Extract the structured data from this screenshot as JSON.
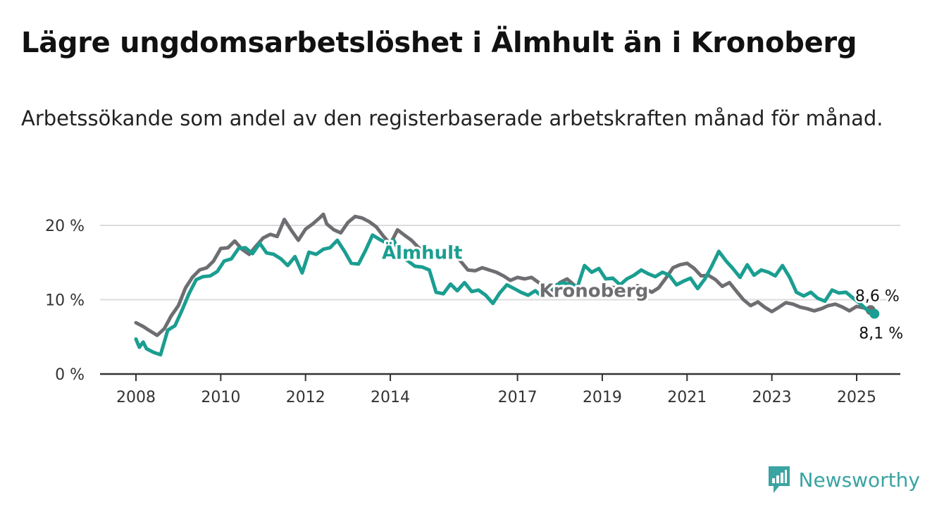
{
  "header": {
    "title": "Lägre ungdomsarbetslöshet i Älmhult än i Kronoberg",
    "subtitle": "Arbetssökande som andel av den registerbaserade arbetskraften månad för månad."
  },
  "brand": {
    "name": "Newsworthy",
    "icon": "newsworthy-logo-icon",
    "color": "#3aa4a2"
  },
  "chart_data": {
    "type": "line",
    "y_ticks": [
      "0 %",
      "10 %",
      "20 %"
    ],
    "y_tick_values": [
      0,
      10,
      20
    ],
    "x_ticks": [
      "2008",
      "2010",
      "2012",
      "2014",
      "2017",
      "2019",
      "2021",
      "2023",
      "2025"
    ],
    "x_tick_values": [
      2008,
      2010,
      2012,
      2014,
      2017,
      2019,
      2021,
      2023,
      2025
    ],
    "xlim": [
      2006.8,
      2026.0
    ],
    "ylim": [
      0,
      22
    ],
    "grid": true,
    "series": [
      {
        "name": "Kronoberg",
        "color": "#6e6e72",
        "label_at": [
          2018.8,
          10.4
        ],
        "end_label": "8,6 %",
        "points": [
          [
            2008.0,
            6.9
          ],
          [
            2008.17,
            6.4
          ],
          [
            2008.33,
            5.8
          ],
          [
            2008.5,
            5.2
          ],
          [
            2008.67,
            6.1
          ],
          [
            2008.83,
            7.8
          ],
          [
            2009.0,
            9.2
          ],
          [
            2009.17,
            11.6
          ],
          [
            2009.33,
            13.0
          ],
          [
            2009.5,
            14.0
          ],
          [
            2009.67,
            14.3
          ],
          [
            2009.83,
            15.2
          ],
          [
            2010.0,
            16.9
          ],
          [
            2010.17,
            17.0
          ],
          [
            2010.33,
            17.9
          ],
          [
            2010.5,
            16.8
          ],
          [
            2010.67,
            16.1
          ],
          [
            2010.83,
            17.2
          ],
          [
            2011.0,
            18.3
          ],
          [
            2011.17,
            18.8
          ],
          [
            2011.33,
            18.5
          ],
          [
            2011.5,
            20.8
          ],
          [
            2011.67,
            19.3
          ],
          [
            2011.83,
            18.0
          ],
          [
            2012.0,
            19.5
          ],
          [
            2012.17,
            20.2
          ],
          [
            2012.33,
            21.0
          ],
          [
            2012.42,
            21.5
          ],
          [
            2012.5,
            20.2
          ],
          [
            2012.67,
            19.4
          ],
          [
            2012.83,
            19.0
          ],
          [
            2013.0,
            20.4
          ],
          [
            2013.17,
            21.2
          ],
          [
            2013.33,
            21.0
          ],
          [
            2013.5,
            20.5
          ],
          [
            2013.67,
            19.8
          ],
          [
            2013.83,
            18.6
          ],
          [
            2014.0,
            17.5
          ],
          [
            2014.17,
            19.4
          ],
          [
            2014.33,
            18.7
          ],
          [
            2014.5,
            18.0
          ],
          [
            2014.67,
            17.0
          ],
          [
            2014.83,
            16.4
          ],
          [
            2015.0,
            16.1
          ],
          [
            2015.17,
            15.6
          ],
          [
            2015.33,
            15.9
          ],
          [
            2015.5,
            16.2
          ],
          [
            2015.67,
            15.1
          ],
          [
            2015.83,
            14.0
          ],
          [
            2016.0,
            13.9
          ],
          [
            2016.17,
            14.3
          ],
          [
            2016.33,
            14.0
          ],
          [
            2016.5,
            13.7
          ],
          [
            2016.67,
            13.2
          ],
          [
            2016.83,
            12.6
          ],
          [
            2017.0,
            13.0
          ],
          [
            2017.17,
            12.8
          ],
          [
            2017.33,
            13.0
          ],
          [
            2017.5,
            12.3
          ],
          [
            2017.67,
            11.8
          ],
          [
            2017.83,
            11.3
          ],
          [
            2018.0,
            12.3
          ],
          [
            2018.17,
            12.8
          ],
          [
            2018.33,
            12.0
          ],
          [
            2018.5,
            11.2
          ],
          [
            2018.67,
            10.6
          ],
          [
            2018.83,
            10.3
          ],
          [
            2019.0,
            10.8
          ],
          [
            2019.17,
            11.7
          ],
          [
            2019.33,
            11.6
          ],
          [
            2019.5,
            11.3
          ],
          [
            2019.67,
            11.1
          ],
          [
            2019.83,
            11.9
          ],
          [
            2020.0,
            11.5
          ],
          [
            2020.17,
            11.0
          ],
          [
            2020.33,
            11.6
          ],
          [
            2020.5,
            12.9
          ],
          [
            2020.67,
            14.3
          ],
          [
            2020.83,
            14.7
          ],
          [
            2021.0,
            14.9
          ],
          [
            2021.17,
            14.2
          ],
          [
            2021.33,
            13.2
          ],
          [
            2021.5,
            13.3
          ],
          [
            2021.67,
            12.7
          ],
          [
            2021.83,
            11.8
          ],
          [
            2022.0,
            12.3
          ],
          [
            2022.17,
            11.1
          ],
          [
            2022.33,
            10.0
          ],
          [
            2022.5,
            9.2
          ],
          [
            2022.67,
            9.7
          ],
          [
            2022.83,
            9.0
          ],
          [
            2023.0,
            8.4
          ],
          [
            2023.17,
            9.0
          ],
          [
            2023.33,
            9.6
          ],
          [
            2023.5,
            9.4
          ],
          [
            2023.67,
            9.0
          ],
          [
            2023.83,
            8.8
          ],
          [
            2024.0,
            8.5
          ],
          [
            2024.17,
            8.8
          ],
          [
            2024.33,
            9.2
          ],
          [
            2024.5,
            9.4
          ],
          [
            2024.67,
            9.0
          ],
          [
            2024.83,
            8.5
          ],
          [
            2025.0,
            9.1
          ],
          [
            2025.17,
            8.9
          ],
          [
            2025.33,
            8.6
          ]
        ]
      },
      {
        "name": "Älmhult",
        "color": "#1a9e91",
        "label_at": [
          2014.75,
          15.5
        ],
        "end_label": "8,1 %",
        "points": [
          [
            2008.0,
            4.7
          ],
          [
            2008.08,
            3.6
          ],
          [
            2008.17,
            4.3
          ],
          [
            2008.25,
            3.4
          ],
          [
            2008.42,
            2.9
          ],
          [
            2008.58,
            2.6
          ],
          [
            2008.75,
            5.9
          ],
          [
            2008.92,
            6.5
          ],
          [
            2009.08,
            8.5
          ],
          [
            2009.25,
            10.8
          ],
          [
            2009.42,
            12.7
          ],
          [
            2009.58,
            13.1
          ],
          [
            2009.75,
            13.2
          ],
          [
            2009.92,
            13.8
          ],
          [
            2010.08,
            15.2
          ],
          [
            2010.25,
            15.5
          ],
          [
            2010.42,
            16.9
          ],
          [
            2010.58,
            17.0
          ],
          [
            2010.75,
            16.2
          ],
          [
            2010.92,
            17.6
          ],
          [
            2011.08,
            16.3
          ],
          [
            2011.25,
            16.1
          ],
          [
            2011.42,
            15.5
          ],
          [
            2011.58,
            14.6
          ],
          [
            2011.75,
            15.8
          ],
          [
            2011.92,
            13.6
          ],
          [
            2012.08,
            16.4
          ],
          [
            2012.25,
            16.1
          ],
          [
            2012.42,
            16.8
          ],
          [
            2012.58,
            17.0
          ],
          [
            2012.75,
            18.0
          ],
          [
            2012.92,
            16.5
          ],
          [
            2013.08,
            14.9
          ],
          [
            2013.25,
            14.8
          ],
          [
            2013.42,
            16.7
          ],
          [
            2013.58,
            18.7
          ],
          [
            2013.75,
            18.1
          ],
          [
            2013.92,
            17.6
          ],
          [
            2014.08,
            18.0
          ],
          [
            2014.25,
            15.9
          ],
          [
            2014.42,
            15.2
          ],
          [
            2014.58,
            14.5
          ],
          [
            2014.75,
            14.4
          ],
          [
            2014.92,
            14.0
          ],
          [
            2015.08,
            11.0
          ],
          [
            2015.25,
            10.8
          ],
          [
            2015.42,
            12.1
          ],
          [
            2015.58,
            11.2
          ],
          [
            2015.75,
            12.3
          ],
          [
            2015.92,
            11.1
          ],
          [
            2016.08,
            11.3
          ],
          [
            2016.25,
            10.6
          ],
          [
            2016.42,
            9.5
          ],
          [
            2016.58,
            10.9
          ],
          [
            2016.75,
            12.0
          ],
          [
            2016.92,
            11.5
          ],
          [
            2017.08,
            11.0
          ],
          [
            2017.25,
            10.6
          ],
          [
            2017.42,
            11.2
          ],
          [
            2017.58,
            10.4
          ],
          [
            2017.75,
            11.5
          ],
          [
            2017.92,
            12.0
          ],
          [
            2018.08,
            12.3
          ],
          [
            2018.25,
            12.0
          ],
          [
            2018.42,
            11.8
          ],
          [
            2018.58,
            14.6
          ],
          [
            2018.75,
            13.7
          ],
          [
            2018.92,
            14.2
          ],
          [
            2019.08,
            12.8
          ],
          [
            2019.25,
            12.9
          ],
          [
            2019.42,
            12.0
          ],
          [
            2019.58,
            12.8
          ],
          [
            2019.75,
            13.3
          ],
          [
            2019.92,
            14.0
          ],
          [
            2020.08,
            13.5
          ],
          [
            2020.25,
            13.1
          ],
          [
            2020.42,
            13.7
          ],
          [
            2020.58,
            13.3
          ],
          [
            2020.75,
            12.0
          ],
          [
            2020.92,
            12.5
          ],
          [
            2021.08,
            12.9
          ],
          [
            2021.25,
            11.5
          ],
          [
            2021.42,
            12.8
          ],
          [
            2021.58,
            14.5
          ],
          [
            2021.75,
            16.5
          ],
          [
            2021.92,
            15.2
          ],
          [
            2022.08,
            14.2
          ],
          [
            2022.25,
            13.0
          ],
          [
            2022.42,
            14.7
          ],
          [
            2022.58,
            13.3
          ],
          [
            2022.75,
            14.0
          ],
          [
            2022.92,
            13.7
          ],
          [
            2023.08,
            13.2
          ],
          [
            2023.25,
            14.6
          ],
          [
            2023.42,
            13.0
          ],
          [
            2023.58,
            11.0
          ],
          [
            2023.75,
            10.5
          ],
          [
            2023.92,
            11.0
          ],
          [
            2024.08,
            10.2
          ],
          [
            2024.25,
            9.8
          ],
          [
            2024.42,
            11.3
          ],
          [
            2024.58,
            10.9
          ],
          [
            2024.75,
            11.0
          ],
          [
            2024.92,
            10.2
          ],
          [
            2025.08,
            9.5
          ],
          [
            2025.25,
            8.6
          ],
          [
            2025.42,
            8.1
          ]
        ]
      }
    ]
  }
}
